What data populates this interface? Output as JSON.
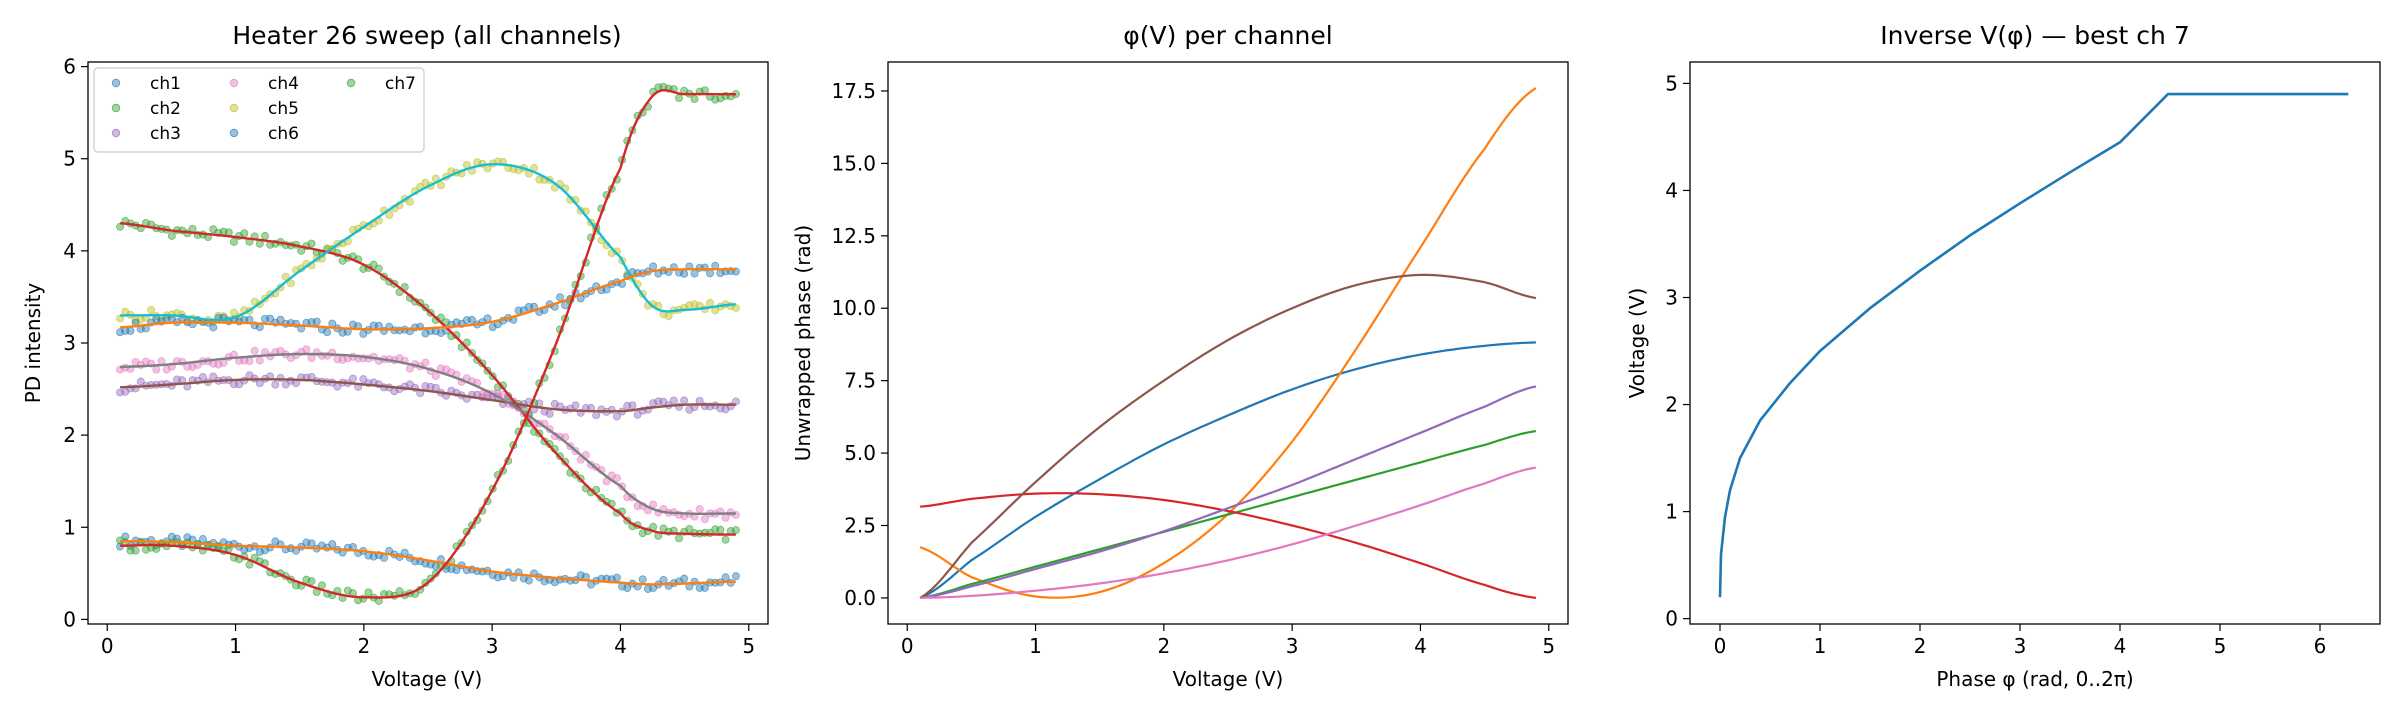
{
  "colors": {
    "tab10": [
      "#1f77b4",
      "#ff7f0e",
      "#2ca02c",
      "#d62728",
      "#9467bd",
      "#8c564b",
      "#e377c2",
      "#7f7f7f",
      "#bcbd22",
      "#17becf"
    ]
  },
  "chart_data": [
    {
      "type": "scatter",
      "title": "Heater 26 sweep (all channels)",
      "xlabel": "Voltage (V)",
      "ylabel": "PD intensity",
      "xlim": [
        -0.15,
        5.15
      ],
      "ylim": [
        -0.05,
        6.05
      ],
      "xticks": [
        0,
        1,
        2,
        3,
        4,
        5
      ],
      "yticks": [
        0,
        1,
        2,
        3,
        4,
        5,
        6
      ],
      "legend": {
        "placement": "top-left",
        "columns": 3
      },
      "x": [
        0.1,
        0.5,
        1.0,
        1.5,
        2.0,
        2.5,
        3.0,
        3.5,
        4.0,
        4.25,
        4.5,
        4.9
      ],
      "series": [
        {
          "name": "ch1",
          "marker_color": "#1f77b4",
          "fit_color": "#ff7f0e",
          "points": [
            0.85,
            0.84,
            0.8,
            0.78,
            0.74,
            0.64,
            0.52,
            0.45,
            0.4,
            0.38,
            0.39,
            0.41
          ]
        },
        {
          "name": "ch2",
          "marker_color": "#2ca02c",
          "fit_color": "#d62728",
          "points": [
            4.3,
            4.22,
            4.15,
            4.05,
            3.85,
            3.35,
            2.65,
            1.8,
            1.15,
            0.96,
            0.93,
            0.92
          ]
        },
        {
          "name": "ch3",
          "marker_color": "#9467bd",
          "fit_color": "#8c564b",
          "points": [
            2.52,
            2.55,
            2.6,
            2.6,
            2.55,
            2.48,
            2.38,
            2.28,
            2.26,
            2.3,
            2.33,
            2.33
          ]
        },
        {
          "name": "ch4",
          "marker_color": "#e377c2",
          "fit_color": "#7f7f7f",
          "points": [
            2.74,
            2.77,
            2.84,
            2.88,
            2.85,
            2.72,
            2.45,
            2.0,
            1.45,
            1.2,
            1.15,
            1.15
          ]
        },
        {
          "name": "ch5",
          "marker_color": "#bcbd22",
          "fit_color": "#17becf",
          "points": [
            3.3,
            3.3,
            3.28,
            3.78,
            4.26,
            4.7,
            4.94,
            4.72,
            3.93,
            3.4,
            3.36,
            3.42
          ]
        },
        {
          "name": "ch6",
          "marker_color": "#1f77b4",
          "fit_color": "#ff7f0e",
          "points": [
            3.17,
            3.22,
            3.22,
            3.19,
            3.15,
            3.16,
            3.23,
            3.43,
            3.67,
            3.78,
            3.8,
            3.8
          ]
        },
        {
          "name": "ch7",
          "marker_color": "#2ca02c",
          "fit_color": "#d62728",
          "points": [
            0.8,
            0.8,
            0.7,
            0.4,
            0.24,
            0.4,
            1.4,
            3.0,
            4.9,
            5.68,
            5.7,
            5.7
          ]
        }
      ]
    },
    {
      "type": "line",
      "title": "φ(V) per channel",
      "xlabel": "Voltage (V)",
      "ylabel": "Unwrapped phase (rad)",
      "xlim": [
        -0.15,
        5.15
      ],
      "ylim": [
        -0.9,
        18.5
      ],
      "xticks": [
        0,
        1,
        2,
        3,
        4,
        5
      ],
      "yticks": [
        0.0,
        2.5,
        5.0,
        7.5,
        10.0,
        12.5,
        15.0,
        17.5
      ],
      "x": [
        0.1,
        0.5,
        1.0,
        1.5,
        2.0,
        2.5,
        3.0,
        3.5,
        4.0,
        4.5,
        4.9
      ],
      "series": [
        {
          "color": "#1f77b4",
          "values": [
            0.0,
            1.3,
            2.8,
            4.1,
            5.3,
            6.3,
            7.2,
            7.9,
            8.4,
            8.7,
            8.82
          ]
        },
        {
          "color": "#ff7f0e",
          "values": [
            1.75,
            0.72,
            0.05,
            0.2,
            1.2,
            2.9,
            5.4,
            8.6,
            12.1,
            15.5,
            17.6
          ]
        },
        {
          "color": "#2ca02c",
          "values": [
            0.0,
            0.48,
            1.08,
            1.68,
            2.28,
            2.88,
            3.48,
            4.08,
            4.68,
            5.28,
            5.76
          ]
        },
        {
          "color": "#d62728",
          "values": [
            3.15,
            3.42,
            3.6,
            3.58,
            3.38,
            3.0,
            2.5,
            1.9,
            1.2,
            0.45,
            0.0
          ]
        },
        {
          "color": "#9467bd",
          "values": [
            0.0,
            0.4,
            1.0,
            1.6,
            2.3,
            3.1,
            3.9,
            4.8,
            5.7,
            6.6,
            7.3
          ]
        },
        {
          "color": "#8c564b",
          "values": [
            0.0,
            1.9,
            4.0,
            5.9,
            7.5,
            8.9,
            10.0,
            10.8,
            11.15,
            10.9,
            10.35
          ]
        },
        {
          "color": "#e377c2",
          "values": [
            0.0,
            0.07,
            0.25,
            0.5,
            0.85,
            1.3,
            1.85,
            2.5,
            3.2,
            3.95,
            4.5
          ]
        }
      ]
    },
    {
      "type": "line",
      "title": "Inverse V(φ) — best ch 7",
      "xlabel": "Phase φ (rad, 0..2π)",
      "ylabel": "Voltage (V)",
      "xlim": [
        -0.3,
        6.6
      ],
      "ylim": [
        -0.05,
        5.2
      ],
      "xticks": [
        0,
        1,
        2,
        3,
        4,
        5,
        6
      ],
      "yticks": [
        0,
        1,
        2,
        3,
        4,
        5
      ],
      "series": [
        {
          "color": "#1f77b4",
          "x": [
            0.0,
            0.01,
            0.05,
            0.1,
            0.2,
            0.4,
            0.7,
            1.0,
            1.5,
            2.0,
            2.5,
            3.0,
            3.5,
            4.0,
            4.48,
            5.0,
            5.5,
            6.283
          ],
          "values": [
            0.2,
            0.6,
            0.95,
            1.2,
            1.5,
            1.85,
            2.2,
            2.5,
            2.9,
            3.25,
            3.58,
            3.88,
            4.17,
            4.45,
            4.9,
            4.9,
            4.9,
            4.9
          ]
        }
      ]
    }
  ]
}
